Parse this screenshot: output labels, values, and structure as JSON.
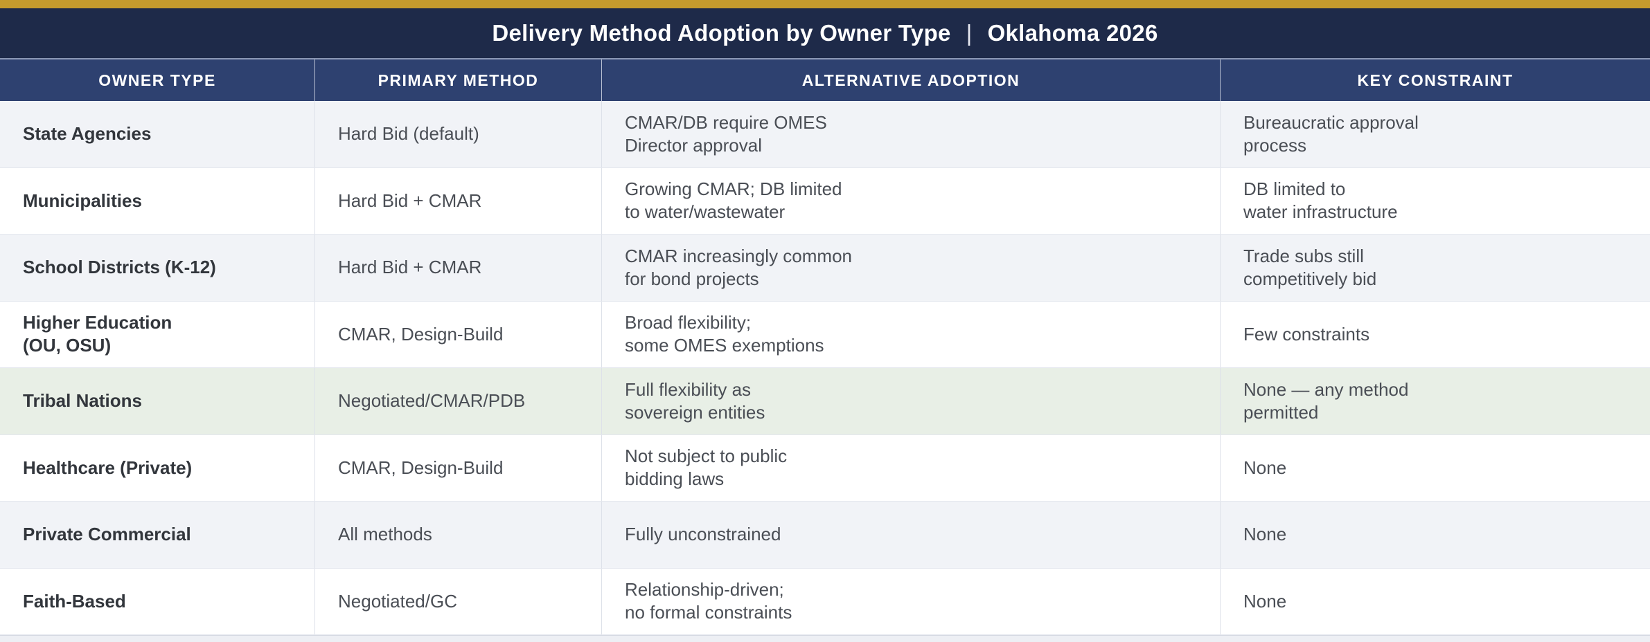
{
  "header": {
    "title_main": "Delivery Method Adoption by Owner Type",
    "title_separator": "|",
    "title_region": "Oklahoma 2026"
  },
  "table": {
    "columns": [
      "OWNER TYPE",
      "PRIMARY METHOD",
      "ALTERNATIVE ADOPTION",
      "KEY CONSTRAINT"
    ],
    "rows": [
      {
        "variant": "gray",
        "owner": [
          "State Agencies"
        ],
        "primary": [
          "Hard Bid (default)"
        ],
        "alternative": [
          "CMAR/DB require OMES",
          "Director approval"
        ],
        "constraint": [
          "Bureaucratic approval",
          "process"
        ]
      },
      {
        "variant": "white",
        "owner": [
          "Municipalities"
        ],
        "primary": [
          "Hard Bid + CMAR"
        ],
        "alternative": [
          "Growing CMAR; DB limited",
          "to water/wastewater"
        ],
        "constraint": [
          "DB limited to",
          "water infrastructure"
        ]
      },
      {
        "variant": "gray",
        "owner": [
          "School Districts (K-12)"
        ],
        "primary": [
          "Hard Bid + CMAR"
        ],
        "alternative": [
          "CMAR increasingly common",
          "for bond projects"
        ],
        "constraint": [
          "Trade subs still",
          "competitively bid"
        ]
      },
      {
        "variant": "white",
        "owner": [
          "Higher Education",
          "(OU, OSU)"
        ],
        "primary": [
          "CMAR, Design-Build"
        ],
        "alternative": [
          "Broad flexibility;",
          "some OMES exemptions"
        ],
        "constraint": [
          "Few constraints"
        ]
      },
      {
        "variant": "green",
        "owner": [
          "Tribal Nations"
        ],
        "primary": [
          "Negotiated/CMAR/PDB"
        ],
        "alternative": [
          "Full flexibility as",
          "sovereign entities"
        ],
        "constraint": [
          "None — any method",
          "permitted"
        ]
      },
      {
        "variant": "white",
        "owner": [
          "Healthcare (Private)"
        ],
        "primary": [
          "CMAR, Design-Build"
        ],
        "alternative": [
          "Not subject to public",
          "bidding laws"
        ],
        "constraint": [
          "None"
        ]
      },
      {
        "variant": "gray",
        "owner": [
          "Private Commercial"
        ],
        "primary": [
          "All methods"
        ],
        "alternative": [
          "Fully unconstrained"
        ],
        "constraint": [
          "None"
        ]
      },
      {
        "variant": "white",
        "owner": [
          "Faith-Based"
        ],
        "primary": [
          "Negotiated/GC"
        ],
        "alternative": [
          "Relationship-driven;",
          "no formal constraints"
        ],
        "constraint": [
          "None"
        ]
      }
    ]
  },
  "chart_data": {
    "type": "table",
    "title": "Delivery Method Adoption by Owner Type | Oklahoma 2026",
    "columns": [
      "OWNER TYPE",
      "PRIMARY METHOD",
      "ALTERNATIVE ADOPTION",
      "KEY CONSTRAINT"
    ],
    "rows": [
      [
        "State Agencies",
        "Hard Bid (default)",
        "CMAR/DB require OMES Director approval",
        "Bureaucratic approval process"
      ],
      [
        "Municipalities",
        "Hard Bid + CMAR",
        "Growing CMAR; DB limited to water/wastewater",
        "DB limited to water infrastructure"
      ],
      [
        "School Districts (K-12)",
        "Hard Bid + CMAR",
        "CMAR increasingly common for bond projects",
        "Trade subs still competitively bid"
      ],
      [
        "Higher Education (OU, OSU)",
        "CMAR, Design-Build",
        "Broad flexibility; some OMES exemptions",
        "Few constraints"
      ],
      [
        "Tribal Nations",
        "Negotiated/CMAR/PDB",
        "Full flexibility as sovereign entities",
        "None — any method permitted"
      ],
      [
        "Healthcare (Private)",
        "CMAR, Design-Build",
        "Not subject to public bidding laws",
        "None"
      ],
      [
        "Private Commercial",
        "All methods",
        "Fully unconstrained",
        "None"
      ],
      [
        "Faith-Based",
        "Negotiated/GC",
        "Relationship-driven; no formal constraints",
        "None"
      ]
    ],
    "highlighted_row": "Tribal Nations"
  },
  "colors": {
    "gold_accent": "#c59b2d",
    "title_bar_bg": "#1e2a49",
    "header_row_bg": "#2e4170",
    "row_gray_bg": "#f1f3f7",
    "row_green_bg": "#e8efe6",
    "row_white_bg": "#ffffff",
    "body_text": "#4a4e55",
    "owner_text": "#32363c",
    "header_text": "#ffffff"
  }
}
